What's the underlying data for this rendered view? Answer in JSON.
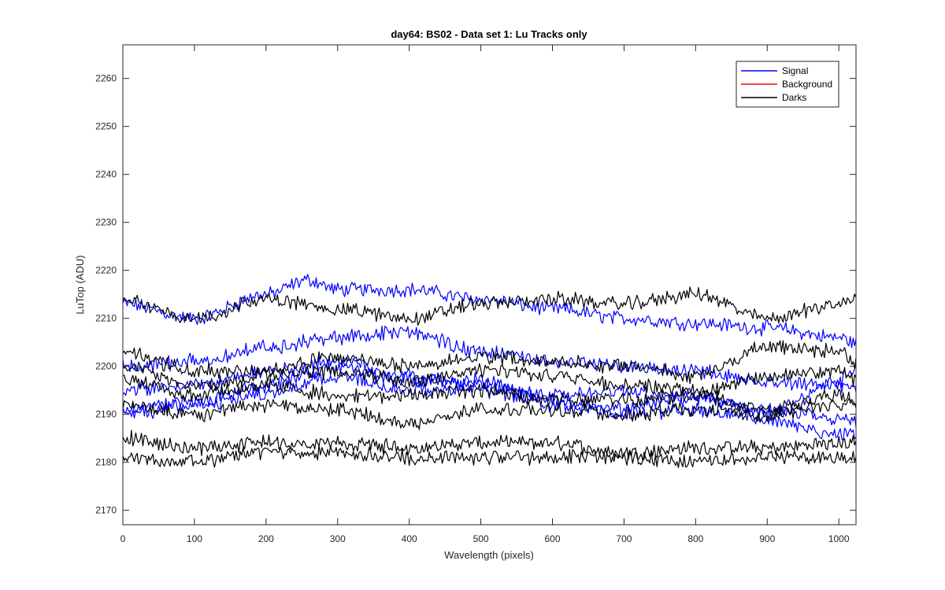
{
  "chart_data": {
    "type": "line",
    "title": "day64: BS02 - Data set 1: Lu Tracks only",
    "xlabel": "Wavelength (pixels)",
    "ylabel": "LuTop (ADU)",
    "xlim": [
      0,
      1024
    ],
    "ylim": [
      2167,
      2267
    ],
    "xticks": [
      0,
      100,
      200,
      300,
      400,
      500,
      600,
      700,
      800,
      900,
      1000
    ],
    "yticks": [
      2170,
      2180,
      2190,
      2200,
      2210,
      2220,
      2230,
      2240,
      2250,
      2260
    ],
    "grid": false,
    "legend": {
      "position": "top-right",
      "entries": [
        {
          "label": "Signal",
          "color": "#0000ff"
        },
        {
          "label": "Background",
          "color": "#ff0000"
        },
        {
          "label": "Darks",
          "color": "#000000"
        }
      ]
    },
    "series": [
      {
        "group": "Signal",
        "color": "#0000ff",
        "x": [
          0,
          100,
          200,
          260,
          300,
          400,
          500,
          600,
          700,
          800,
          900,
          1000,
          1024
        ],
        "y": [
          2213,
          2210,
          2215,
          2218,
          2216,
          2216,
          2214,
          2212,
          2210,
          2209,
          2208,
          2206,
          2205
        ]
      },
      {
        "group": "Signal",
        "color": "#0000ff",
        "x": [
          0,
          100,
          200,
          300,
          400,
          500,
          600,
          700,
          800,
          900,
          1000,
          1024
        ],
        "y": [
          2200,
          2201,
          2204,
          2206,
          2207,
          2203,
          2201,
          2200,
          2199,
          2197,
          2196,
          2195
        ]
      },
      {
        "group": "Signal",
        "color": "#0000ff",
        "x": [
          0,
          100,
          200,
          300,
          400,
          500,
          600,
          700,
          800,
          900,
          1000,
          1024
        ],
        "y": [
          2195,
          2196,
          2199,
          2201,
          2198,
          2196,
          2194,
          2195,
          2193,
          2191,
          2189,
          2188
        ]
      },
      {
        "group": "Signal",
        "color": "#0000ff",
        "x": [
          0,
          100,
          200,
          300,
          400,
          500,
          600,
          700,
          800,
          900,
          1000,
          1024
        ],
        "y": [
          2191,
          2193,
          2196,
          2200,
          2197,
          2197,
          2193,
          2191,
          2194,
          2190,
          2197,
          2200
        ]
      },
      {
        "group": "Signal",
        "color": "#0000ff",
        "x": [
          0,
          100,
          200,
          300,
          400,
          500,
          600,
          700,
          800,
          900,
          1000,
          1024
        ],
        "y": [
          2190,
          2192,
          2194,
          2198,
          2195,
          2195,
          2192,
          2190,
          2191,
          2189,
          2186,
          2186
        ]
      },
      {
        "group": "Darks",
        "color": "#000000",
        "x": [
          0,
          100,
          200,
          300,
          400,
          500,
          600,
          700,
          800,
          900,
          1000,
          1024
        ],
        "y": [
          2214,
          2210,
          2214,
          2212,
          2210,
          2213,
          2214,
          2213,
          2215,
          2210,
          2213,
          2214
        ]
      },
      {
        "group": "Darks",
        "color": "#000000",
        "x": [
          0,
          100,
          200,
          300,
          400,
          500,
          600,
          700,
          800,
          900,
          1000,
          1024
        ],
        "y": [
          2203,
          2199,
          2199,
          2202,
          2200,
          2202,
          2201,
          2200,
          2198,
          2204,
          2203,
          2201
        ]
      },
      {
        "group": "Darks",
        "color": "#000000",
        "x": [
          0,
          100,
          200,
          300,
          400,
          500,
          600,
          700,
          800,
          900,
          1000,
          1024
        ],
        "y": [
          2200,
          2196,
          2198,
          2199,
          2197,
          2199,
          2198,
          2196,
          2195,
          2198,
          2199,
          2197
        ]
      },
      {
        "group": "Darks",
        "color": "#000000",
        "x": [
          0,
          100,
          200,
          300,
          400,
          500,
          600,
          700,
          800,
          900,
          1000,
          1024
        ],
        "y": [
          2197,
          2194,
          2196,
          2194,
          2194,
          2195,
          2193,
          2193,
          2194,
          2191,
          2194,
          2193
        ]
      },
      {
        "group": "Darks",
        "color": "#000000",
        "x": [
          0,
          100,
          200,
          300,
          400,
          500,
          600,
          700,
          800,
          900,
          1000,
          1024
        ],
        "y": [
          2192,
          2190,
          2192,
          2191,
          2188,
          2191,
          2191,
          2190,
          2191,
          2190,
          2192,
          2192
        ]
      },
      {
        "group": "Darks",
        "color": "#000000",
        "x": [
          0,
          100,
          200,
          300,
          400,
          500,
          600,
          700,
          800,
          900,
          1000,
          1024
        ],
        "y": [
          2185,
          2183,
          2184,
          2184,
          2183,
          2184,
          2184,
          2182,
          2183,
          2183,
          2184,
          2184
        ]
      },
      {
        "group": "Darks",
        "color": "#000000",
        "x": [
          0,
          100,
          200,
          300,
          400,
          500,
          600,
          700,
          800,
          900,
          1000,
          1024
        ],
        "y": [
          2181,
          2180,
          2182,
          2182,
          2181,
          2181,
          2181,
          2181,
          2180,
          2181,
          2181,
          2181
        ]
      }
    ]
  }
}
